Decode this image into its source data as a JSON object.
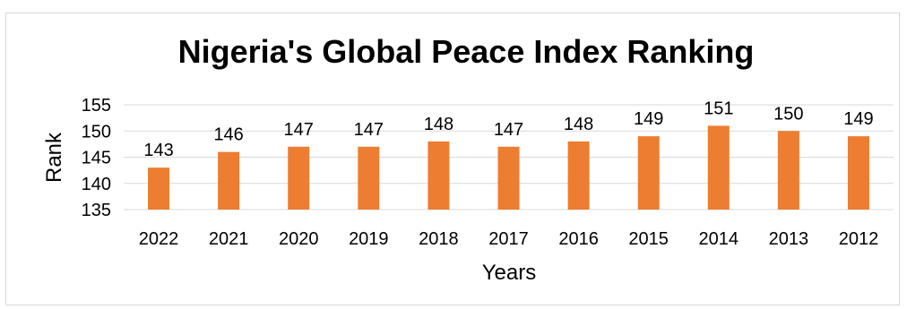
{
  "chart_data": {
    "type": "bar",
    "title": "Nigeria's Global Peace Index Ranking",
    "xlabel": "Years",
    "ylabel": "Rank",
    "categories": [
      "2022",
      "2021",
      "2020",
      "2019",
      "2018",
      "2017",
      "2016",
      "2015",
      "2014",
      "2013",
      "2012"
    ],
    "series": [
      {
        "values": [
          143,
          146,
          147,
          147,
          148,
          147,
          148,
          149,
          151,
          150,
          149
        ]
      }
    ],
    "data_labels": [
      "143",
      "146",
      "147",
      "147",
      "148",
      "147",
      "148",
      "149",
      "151",
      "150",
      "149"
    ],
    "ylim": [
      135,
      155
    ],
    "yticks": [
      135,
      140,
      145,
      150,
      155
    ],
    "ytick_labels": [
      "135",
      "140",
      "145",
      "150",
      "155"
    ],
    "grid": true,
    "legend": "none",
    "bar_color": "#ed7d31",
    "grid_color": "#d9d9d9"
  }
}
